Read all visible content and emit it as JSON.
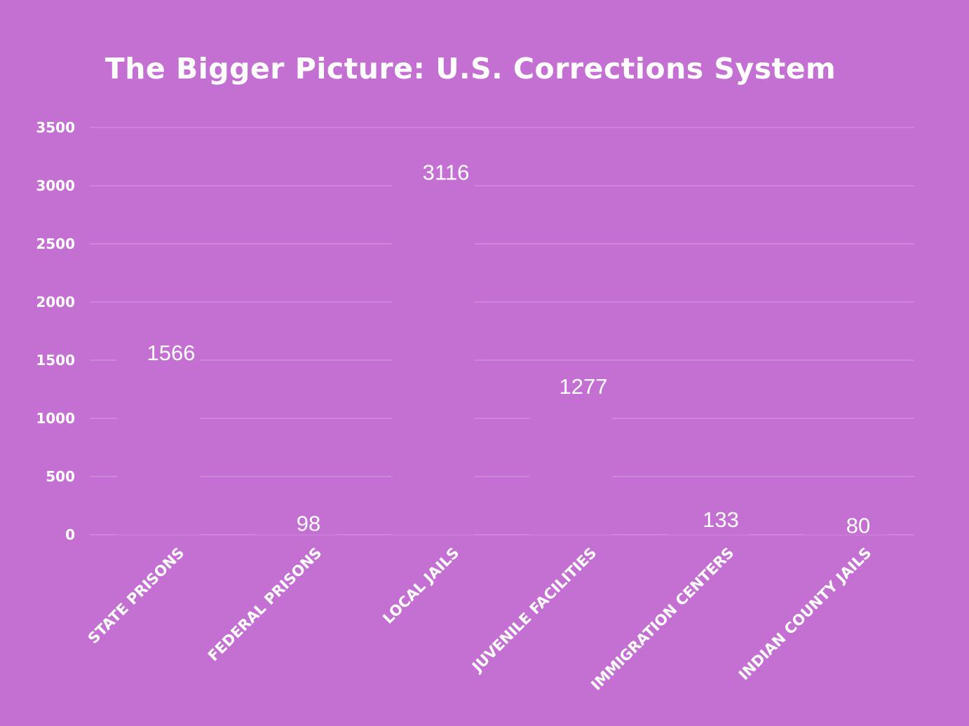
{
  "chart_data": {
    "type": "bar",
    "title": "The Bigger Picture: U.S. Corrections System",
    "xlabel": "",
    "ylabel": "",
    "categories": [
      "STATE PRISONS",
      "FEDERAL PRISONS",
      "LOCAL JAILS",
      "JUVENILE FACILITIES",
      "IMMIGRATION CENTERS",
      "INDIAN COUNTY JAILS"
    ],
    "values": [
      1566,
      98,
      3116,
      1277,
      133,
      80
    ],
    "value_labels": [
      "1566",
      "98",
      "3116",
      "1277",
      "133",
      "80"
    ],
    "ylim": [
      0,
      3500
    ],
    "yticks": [
      0,
      500,
      1000,
      1500,
      2000,
      2500,
      3000,
      3500
    ],
    "ytick_labels": [
      "0",
      "500",
      "1000",
      "1500",
      "2000",
      "2500",
      "3000",
      "3500"
    ],
    "grid": true,
    "legend": "none"
  },
  "colors": {
    "background": "#c470d3",
    "bar": "#c470d3",
    "gridline": "#d79ae2",
    "text": "#ffffff"
  }
}
